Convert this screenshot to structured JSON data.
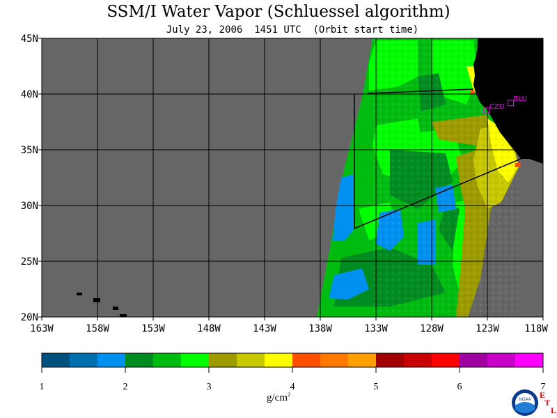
{
  "title": "SSM/I Water Vapor (Schluessel algorithm)",
  "subtitle": "July 23, 2006  1451 UTC  (Orbit start time)",
  "map": {
    "lon_labels": [
      "163W",
      "158W",
      "153W",
      "148W",
      "143W",
      "138W",
      "133W",
      "128W",
      "123W",
      "118W"
    ],
    "lat_labels": [
      "45N",
      "40N",
      "35N",
      "30N",
      "25N",
      "20N"
    ],
    "station_labels": [
      {
        "label": "CZD"
      },
      {
        "label": "BLU"
      }
    ],
    "colors": {
      "land": "#000000",
      "nodata": "#666666",
      "grid": "#000000",
      "station": "#ff00ff"
    }
  },
  "colorbar": {
    "colors": [
      "#005080",
      "#0070b0",
      "#0090f0",
      "#008c20",
      "#00bb10",
      "#00ff00",
      "#9c9c00",
      "#c8c800",
      "#ffff00",
      "#ff5000",
      "#ff7800",
      "#ffa000",
      "#a00000",
      "#c80000",
      "#ff0000",
      "#a000a0",
      "#c800c8",
      "#ff00ff"
    ],
    "tick_labels": [
      "1",
      "2",
      "3",
      "4",
      "5",
      "6",
      "7"
    ],
    "unit_label": "g/cm",
    "unit_sup": "2"
  },
  "logo": {
    "text": "NOAA",
    "etl_letters": [
      "E",
      "T",
      "L"
    ]
  }
}
